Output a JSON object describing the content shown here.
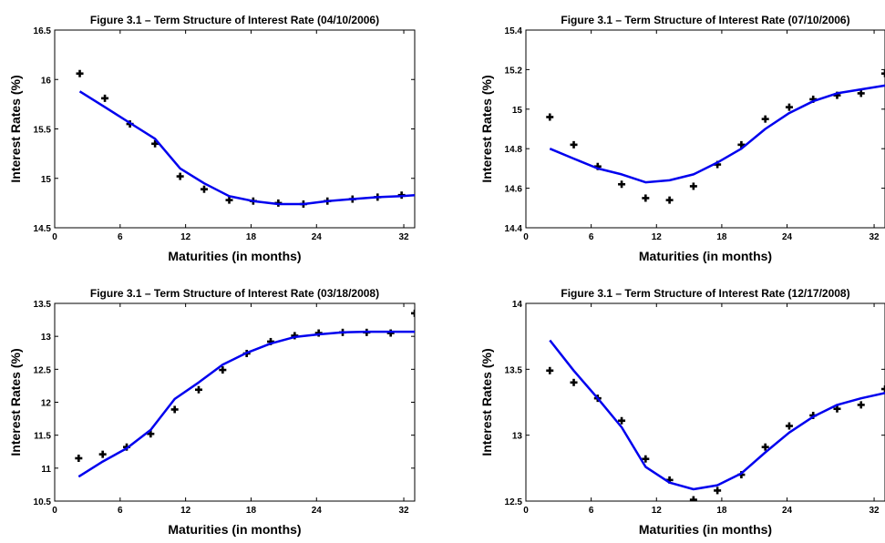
{
  "chart_data": [
    {
      "type": "scatter",
      "title": "Figure 3.1 – Term Structure of Interest Rate (04/10/2006)",
      "xlabel": "Maturities (in months)",
      "ylabel": "Interest Rates (%)",
      "xlim": [
        0,
        33
      ],
      "ylim": [
        14.5,
        16.5
      ],
      "xticks": [
        0,
        6,
        12,
        18,
        24,
        32
      ],
      "yticks": [
        14.5,
        15,
        15.5,
        16,
        16.5
      ],
      "ytick_labels": [
        "14.5",
        "15",
        "15.5",
        "16",
        "16.5"
      ],
      "grid": false,
      "series": [
        {
          "style": "markers",
          "color": "#000000",
          "x": [
            2.3,
            4.6,
            6.9,
            9.2,
            11.5,
            13.7,
            16.0,
            18.2,
            20.5,
            22.8,
            25.0,
            27.3,
            29.6,
            31.8
          ],
          "y": [
            16.06,
            15.81,
            15.55,
            15.35,
            15.02,
            14.89,
            14.78,
            14.77,
            14.75,
            14.74,
            14.77,
            14.79,
            14.81,
            14.83
          ]
        },
        {
          "style": "line",
          "color": "#0000ee",
          "x": [
            2.3,
            4.6,
            6.9,
            9.2,
            11.5,
            13.7,
            16.0,
            18.2,
            20.5,
            22.8,
            25.0,
            27.3,
            29.6,
            31.8,
            33.0
          ],
          "y": [
            15.88,
            15.72,
            15.56,
            15.4,
            15.1,
            14.95,
            14.82,
            14.77,
            14.74,
            14.74,
            14.77,
            14.79,
            14.81,
            14.82,
            14.83
          ]
        }
      ]
    },
    {
      "type": "scatter",
      "title": "Figure 3.1 – Term Structure of Interest Rate (07/10/2006)",
      "xlabel": "Maturities (in months)",
      "ylabel": "Interest Rates (%)",
      "xlim": [
        0,
        33
      ],
      "ylim": [
        14.4,
        15.4
      ],
      "xticks": [
        0,
        6,
        12,
        18,
        24,
        32
      ],
      "yticks": [
        14.4,
        14.6,
        14.8,
        15,
        15.2,
        15.4
      ],
      "ytick_labels": [
        "14.4",
        "14.6",
        "14.8",
        "15",
        "15.2",
        "15.4"
      ],
      "grid": false,
      "series": [
        {
          "style": "markers",
          "color": "#000000",
          "x": [
            2.2,
            4.4,
            6.6,
            8.8,
            11.0,
            13.2,
            15.4,
            17.6,
            19.8,
            22.0,
            24.2,
            26.4,
            28.6,
            30.8,
            33.0
          ],
          "y": [
            14.96,
            14.82,
            14.71,
            14.62,
            14.55,
            14.54,
            14.61,
            14.72,
            14.82,
            14.95,
            15.01,
            15.05,
            15.07,
            15.08,
            15.18
          ]
        },
        {
          "style": "line",
          "color": "#0000ee",
          "x": [
            2.2,
            4.4,
            6.6,
            8.8,
            11.0,
            13.2,
            15.4,
            17.6,
            19.8,
            22.0,
            24.2,
            26.4,
            28.6,
            30.8,
            33.0
          ],
          "y": [
            14.8,
            14.75,
            14.7,
            14.67,
            14.63,
            14.64,
            14.67,
            14.73,
            14.8,
            14.9,
            14.98,
            15.04,
            15.08,
            15.1,
            15.12
          ]
        }
      ]
    },
    {
      "type": "scatter",
      "title": "Figure 3.1 – Term Structure of Interest Rate (03/18/2008)",
      "xlabel": "Maturities (in months)",
      "ylabel": "Interest Rates (%)",
      "xlim": [
        0,
        33
      ],
      "ylim": [
        10.5,
        13.5
      ],
      "xticks": [
        0,
        6,
        12,
        18,
        24,
        32
      ],
      "yticks": [
        10.5,
        11,
        11.5,
        12,
        12.5,
        13,
        13.5
      ],
      "ytick_labels": [
        "10.5",
        "11",
        "11.5",
        "12",
        "12.5",
        "13",
        "13.5"
      ],
      "grid": false,
      "series": [
        {
          "style": "markers",
          "color": "#000000",
          "x": [
            2.2,
            4.4,
            6.6,
            8.8,
            11.0,
            13.2,
            15.4,
            17.6,
            19.8,
            22.0,
            24.2,
            26.4,
            28.6,
            30.8,
            33.0
          ],
          "y": [
            11.15,
            11.21,
            11.32,
            11.52,
            11.89,
            12.19,
            12.49,
            12.74,
            12.92,
            13.01,
            13.05,
            13.06,
            13.06,
            13.05,
            13.35
          ]
        },
        {
          "style": "line",
          "color": "#0000ee",
          "x": [
            2.2,
            4.4,
            6.6,
            8.8,
            11.0,
            13.2,
            15.4,
            17.6,
            19.8,
            22.0,
            24.2,
            26.4,
            28.6,
            30.8,
            33.0
          ],
          "y": [
            10.87,
            11.1,
            11.3,
            11.58,
            12.05,
            12.3,
            12.57,
            12.75,
            12.89,
            12.99,
            13.03,
            13.06,
            13.07,
            13.07,
            13.07
          ]
        }
      ]
    },
    {
      "type": "scatter",
      "title": "Figure 3.1 – Term Structure of Interest Rate (12/17/2008)",
      "xlabel": "Maturities (in months)",
      "ylabel": "Interest Rates (%)",
      "xlim": [
        0,
        33
      ],
      "ylim": [
        12.5,
        14
      ],
      "xticks": [
        0,
        6,
        12,
        18,
        24,
        32
      ],
      "yticks": [
        12.5,
        13,
        13.5,
        14
      ],
      "ytick_labels": [
        "12.5",
        "13",
        "13.5",
        "14"
      ],
      "grid": false,
      "series": [
        {
          "style": "markers",
          "color": "#000000",
          "x": [
            2.2,
            4.4,
            6.6,
            8.8,
            11.0,
            13.2,
            15.4,
            17.6,
            19.8,
            22.0,
            24.2,
            26.4,
            28.6,
            30.8,
            33.0
          ],
          "y": [
            13.49,
            13.4,
            13.28,
            13.11,
            12.82,
            12.66,
            12.51,
            12.58,
            12.7,
            12.91,
            13.07,
            13.15,
            13.2,
            13.23,
            13.35
          ]
        },
        {
          "style": "line",
          "color": "#0000ee",
          "x": [
            2.2,
            4.4,
            6.6,
            8.8,
            11.0,
            13.2,
            15.4,
            17.6,
            19.8,
            22.0,
            24.2,
            26.4,
            28.6,
            30.8,
            33.0
          ],
          "y": [
            13.72,
            13.49,
            13.28,
            13.06,
            12.76,
            12.64,
            12.59,
            12.62,
            12.71,
            12.87,
            13.02,
            13.14,
            13.23,
            13.28,
            13.32
          ]
        }
      ]
    }
  ]
}
